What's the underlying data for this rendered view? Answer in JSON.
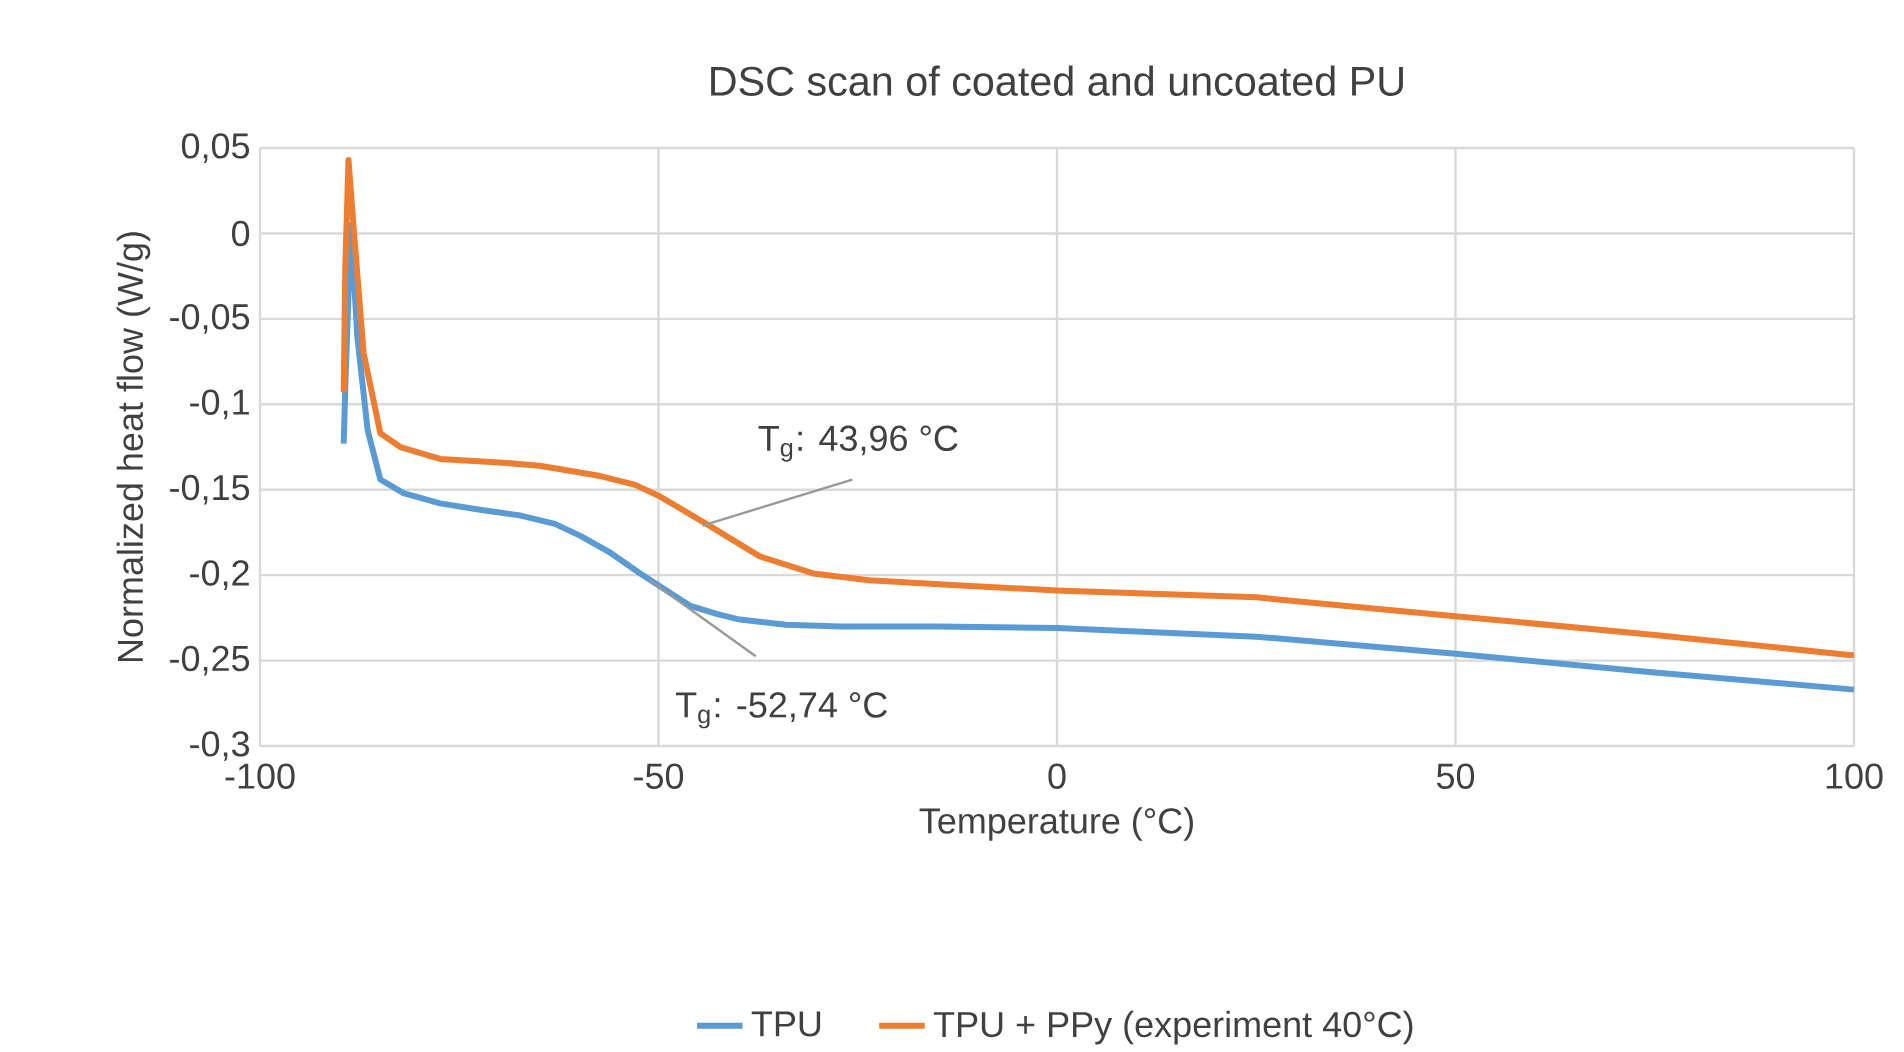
{
  "chart_data": {
    "type": "line",
    "title": "DSC scan of coated and uncoated PU",
    "xlabel": "Temperature (°C)",
    "ylabel": "Normalized heat flow (W/g)",
    "xlim": [
      -100,
      100
    ],
    "xticks": [
      -100,
      -50,
      0,
      50,
      100
    ],
    "ylim": [
      -0.3,
      0.05
    ],
    "yticks": [
      {
        "value": -0.3,
        "label": "-0,3"
      },
      {
        "value": -0.25,
        "label": "-0,25"
      },
      {
        "value": -0.2,
        "label": "-0,2"
      },
      {
        "value": -0.15,
        "label": "-0,15"
      },
      {
        "value": -0.1,
        "label": "-0,1"
      },
      {
        "value": -0.05,
        "label": "-0,05"
      },
      0,
      {
        "value": 0.05,
        "label": "0,05"
      }
    ],
    "grid": true,
    "legend": "bottom",
    "marker": "none",
    "line_style": "solid",
    "series": [
      {
        "name": "TPU",
        "color": "#5b9bd5",
        "x": [
          -89.5,
          -89.3,
          -88.6,
          -87.8,
          -86.5,
          -84.9,
          -82,
          -77.4,
          -72,
          -67.4,
          -63,
          -59.8,
          -56,
          -52.3,
          -49,
          -46,
          -42.5,
          -39.8,
          -34,
          -27.2,
          -15,
          0,
          25,
          50,
          75,
          100
        ],
        "values": [
          -0.123,
          -0.09,
          0.005,
          -0.06,
          -0.115,
          -0.144,
          -0.152,
          -0.158,
          -0.162,
          -0.165,
          -0.17,
          -0.177,
          -0.187,
          -0.199,
          -0.209,
          -0.218,
          -0.223,
          -0.226,
          -0.229,
          -0.23,
          -0.23,
          -0.231,
          -0.236,
          -0.246,
          -0.257,
          -0.267
        ]
      },
      {
        "name": "TPU + PPy (experiment 40°C)",
        "color": "#ed7d31",
        "x": [
          -89.5,
          -89.3,
          -88.9,
          -88.2,
          -87,
          -84.9,
          -82.4,
          -77.4,
          -70,
          -64.9,
          -57.3,
          -53,
          -49.8,
          -44,
          -37.3,
          -30.6,
          -23.6,
          -12,
          0,
          25,
          50,
          75,
          100
        ],
        "values": [
          -0.093,
          -0.02,
          0.043,
          0.0,
          -0.07,
          -0.117,
          -0.125,
          -0.132,
          -0.134,
          -0.136,
          -0.142,
          -0.147,
          -0.154,
          -0.17,
          -0.189,
          -0.199,
          -0.203,
          -0.206,
          -0.209,
          -0.213,
          -0.224,
          -0.235,
          -0.247
        ]
      }
    ],
    "annotations": [
      {
        "text": "T$_{g}$: 43,96 °C",
        "x": -44.5,
        "y": -0.171
      },
      {
        "text": "T$_{g}$: -52,74 °C",
        "x": -51.1,
        "y": -0.203
      }
    ]
  }
}
